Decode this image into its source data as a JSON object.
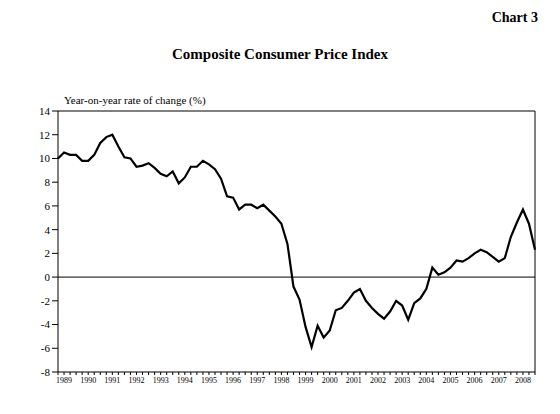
{
  "chart_data": {
    "type": "line",
    "title": "Composite Consumer Price Index",
    "annotation": "Chart 3",
    "y_label": "Year-on-year rate of change (%)",
    "categories": [
      null,
      "1989",
      null,
      null,
      null,
      "1990",
      null,
      null,
      null,
      "1991",
      null,
      null,
      null,
      "1992",
      null,
      null,
      null,
      "1993",
      null,
      null,
      null,
      "1994",
      null,
      null,
      null,
      "1995",
      null,
      null,
      null,
      "1996",
      null,
      null,
      null,
      "1997",
      null,
      null,
      null,
      "1998",
      null,
      null,
      null,
      "1999",
      null,
      null,
      null,
      "2000",
      null,
      null,
      null,
      "2001",
      null,
      null,
      null,
      "2002",
      null,
      null,
      null,
      "2003",
      null,
      null,
      null,
      "2004",
      null,
      null,
      null,
      "2005",
      null,
      null,
      null,
      "2006",
      null,
      null,
      null,
      "2007",
      null,
      null,
      null,
      "2008",
      null,
      null
    ],
    "values": [
      10.0,
      10.5,
      10.3,
      10.3,
      9.8,
      9.8,
      10.3,
      11.3,
      11.8,
      12.0,
      11.0,
      10.1,
      10.0,
      9.3,
      9.4,
      9.6,
      9.2,
      8.7,
      8.5,
      8.9,
      7.9,
      8.4,
      9.3,
      9.3,
      9.8,
      9.5,
      9.1,
      8.3,
      6.8,
      6.7,
      5.7,
      6.1,
      6.1,
      5.8,
      6.1,
      5.6,
      5.1,
      4.5,
      2.8,
      -0.8,
      -1.9,
      -4.2,
      -5.9,
      -4.1,
      -5.1,
      -4.5,
      -2.8,
      -2.6,
      -2.0,
      -1.3,
      -1.0,
      -2.0,
      -2.6,
      -3.1,
      -3.5,
      -2.9,
      -2.0,
      -2.4,
      -3.6,
      -2.2,
      -1.8,
      -1.0,
      0.8,
      0.2,
      0.4,
      0.8,
      1.4,
      1.3,
      1.6,
      2.0,
      2.3,
      2.1,
      1.7,
      1.3,
      1.6,
      3.4,
      4.6,
      5.7,
      4.5,
      2.3
    ],
    "color": "#000000",
    "ylim": [
      -8,
      14
    ],
    "yticks": [
      -8,
      -6,
      -4,
      -2,
      0,
      2,
      4,
      6,
      8,
      10,
      12,
      14
    ],
    "grid": false
  }
}
